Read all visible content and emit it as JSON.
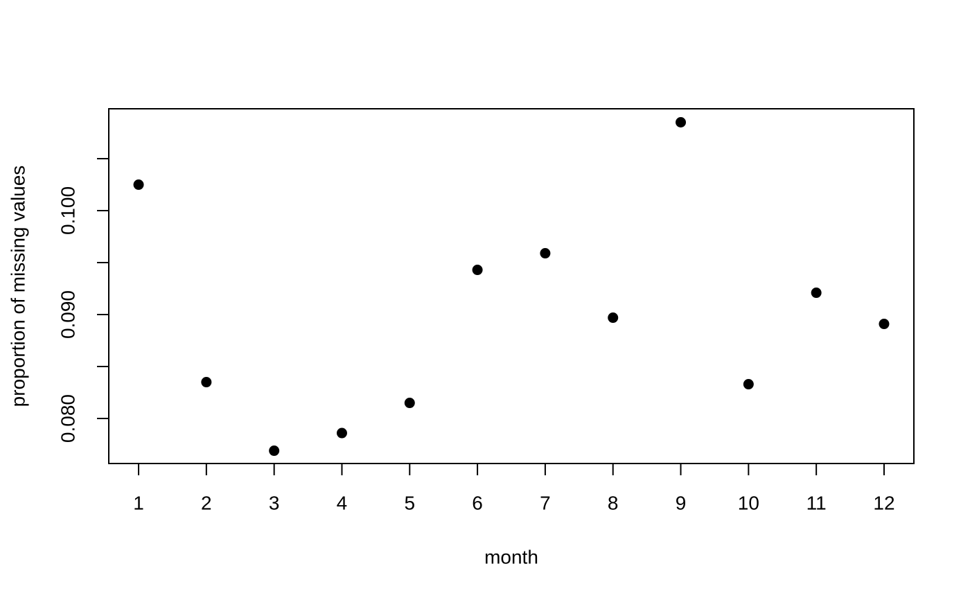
{
  "chart_data": {
    "type": "scatter",
    "x": [
      1,
      2,
      3,
      4,
      5,
      6,
      7,
      8,
      9,
      10,
      11,
      12
    ],
    "values": [
      0.1025,
      0.0835,
      0.0769,
      0.0786,
      0.0815,
      0.0943,
      0.0959,
      0.0897,
      0.1085,
      0.0833,
      0.0921,
      0.0891
    ],
    "color": "#000000",
    "xlabel": "month",
    "ylabel": "proportion of missing values",
    "xlim": [
      0.56,
      12.44
    ],
    "xticks": [
      1,
      2,
      3,
      4,
      5,
      6,
      7,
      8,
      9,
      10,
      11,
      12
    ],
    "ylim": [
      0.07567,
      0.1098
    ],
    "yticks": [
      {
        "value": 0.08,
        "label": "0.080"
      },
      {
        "value": 0.085,
        "label": null
      },
      {
        "value": 0.09,
        "label": "0.090"
      },
      {
        "value": 0.095,
        "label": null
      },
      {
        "value": 0.1,
        "label": "0.100"
      },
      {
        "value": 0.105,
        "label": null
      }
    ]
  }
}
